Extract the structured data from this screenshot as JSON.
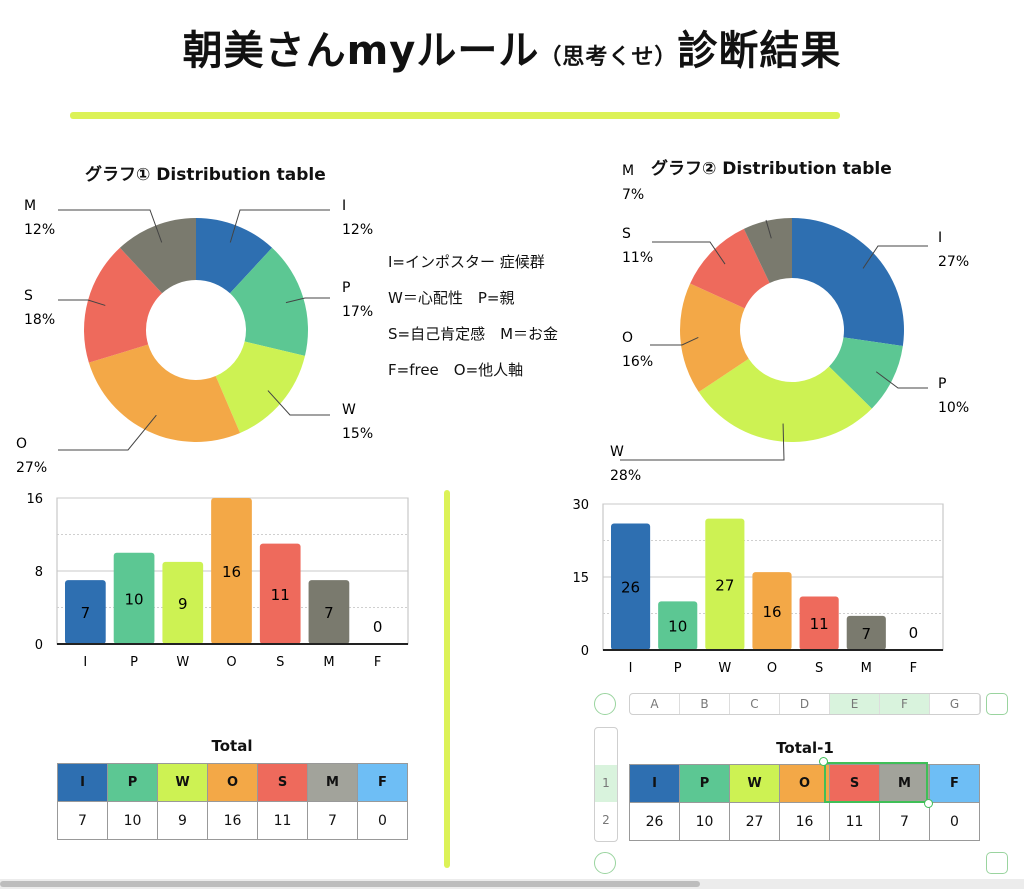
{
  "page": {
    "title_main": "朝美さんmyルール",
    "title_sub": "（思考くせ）",
    "title_end": "診断結果"
  },
  "legend": [
    "I=インポスター 症候群",
    "W＝心配性　P=親",
    "S=自己肯定感　M＝お金",
    "F=free　O=他人軸"
  ],
  "colors": {
    "I": "#2e6fb1",
    "P": "#5cc793",
    "W": "#cdf253",
    "O": "#f3a847",
    "S": "#ee6a5c",
    "M": "#7a7a6e",
    "M_table": "#a2a39b",
    "F": "#6ebef5",
    "accent_green": "#d6f03a"
  },
  "chart_data": [
    {
      "type": "pie",
      "title": "グラフ① Distribution table",
      "donut": true,
      "categories": [
        "I",
        "P",
        "W",
        "O",
        "S",
        "M"
      ],
      "values": [
        12,
        17,
        15,
        27,
        18,
        12
      ],
      "labels": [
        "I\n12%",
        "P\n17%",
        "W\n15%",
        "O\n27%",
        "S\n18%",
        "M\n12%"
      ]
    },
    {
      "type": "pie",
      "title": "グラフ② Distribution table",
      "donut": true,
      "categories": [
        "I",
        "P",
        "W",
        "O",
        "S",
        "M"
      ],
      "values": [
        27,
        10,
        28,
        16,
        11,
        7
      ],
      "labels": [
        "I\n27%",
        "P\n10%",
        "W\n28%",
        "O\n16%",
        "S\n11%",
        "M\n7%"
      ]
    },
    {
      "type": "bar",
      "title": "",
      "categories": [
        "I",
        "P",
        "W",
        "O",
        "S",
        "M",
        "F"
      ],
      "values": [
        7,
        10,
        9,
        16,
        11,
        7,
        0
      ],
      "ylim": [
        0,
        16
      ],
      "yticks": [
        0,
        8,
        16
      ]
    },
    {
      "type": "bar",
      "title": "",
      "categories": [
        "I",
        "P",
        "W",
        "O",
        "S",
        "M",
        "F"
      ],
      "values": [
        26,
        10,
        27,
        16,
        11,
        7,
        0
      ],
      "ylim": [
        0,
        30
      ],
      "yticks": [
        0,
        15,
        30
      ]
    },
    {
      "type": "table",
      "title": "Total",
      "header": [
        "I",
        "P",
        "W",
        "O",
        "S",
        "M",
        "F"
      ],
      "rows": [
        [
          "7",
          "10",
          "9",
          "16",
          "11",
          "7",
          "0"
        ]
      ]
    },
    {
      "type": "table",
      "title": "Total-1",
      "header": [
        "I",
        "P",
        "W",
        "O",
        "S",
        "M",
        "F"
      ],
      "rows": [
        [
          "26",
          "10",
          "27",
          "16",
          "11",
          "7",
          "0"
        ]
      ]
    }
  ],
  "sheet_ui": {
    "columns": [
      "A",
      "B",
      "C",
      "D",
      "E",
      "F",
      "G"
    ],
    "selected_columns": [
      "E",
      "F"
    ],
    "rows": [
      "1",
      "2"
    ],
    "selected_row": "1"
  }
}
